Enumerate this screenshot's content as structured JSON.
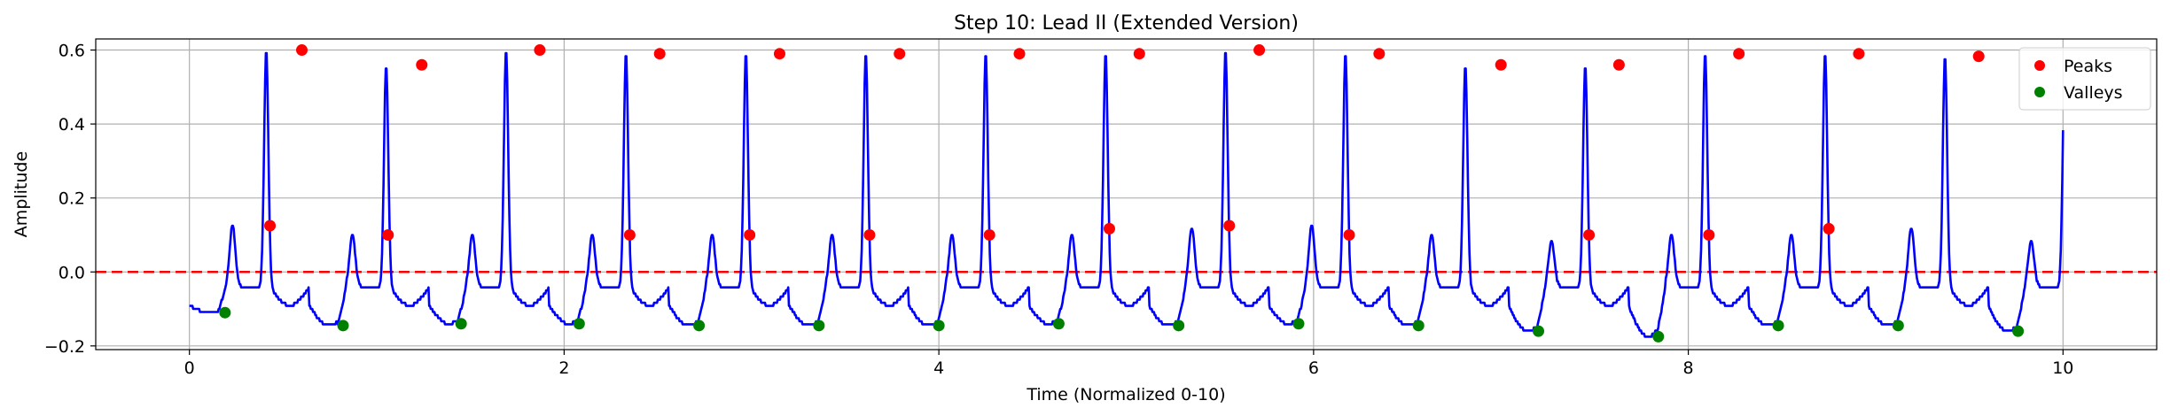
{
  "chart_data": {
    "type": "line",
    "title": "Step 10: Lead II (Extended Version)",
    "xlabel": "Time (Normalized 0-10)",
    "ylabel": "Amplitude",
    "xlim": [
      -0.5,
      10.5
    ],
    "ylim": [
      -0.21,
      0.63
    ],
    "xticks": [
      0,
      2,
      4,
      6,
      8,
      10
    ],
    "yticks": [
      -0.2,
      0.0,
      0.2,
      0.4,
      0.6
    ],
    "xtick_labels": [
      "0",
      "2",
      "4",
      "6",
      "8",
      "10"
    ],
    "ytick_labels": [
      "−0.2",
      "0.0",
      "0.2",
      "0.4",
      "0.6"
    ],
    "grid": true,
    "legend_position": "top-right",
    "reference_line": {
      "y": 0.0,
      "style": "dashed",
      "color": "#ff0000"
    },
    "beats": {
      "start": 0.0,
      "end": 10.0,
      "period": 0.64,
      "count": 16,
      "p_peaks": [
        0.125,
        0.1,
        0.1,
        0.1,
        0.1,
        0.1,
        0.1,
        0.1,
        0.117,
        0.125,
        0.1,
        0.083,
        0.1,
        0.1,
        0.117,
        0.083
      ],
      "r_peaks": [
        0.6,
        0.56,
        0.6,
        0.59,
        0.59,
        0.59,
        0.59,
        0.59,
        0.6,
        0.59,
        0.56,
        0.56,
        0.59,
        0.59,
        0.583,
        0.59
      ],
      "s_valleys": [
        -0.11,
        -0.145,
        -0.14,
        -0.14,
        -0.145,
        -0.145,
        -0.145,
        -0.14,
        -0.145,
        -0.14,
        -0.145,
        -0.16,
        -0.175,
        -0.145,
        -0.145,
        -0.16
      ],
      "baseline": -0.04
    },
    "series": [
      {
        "name": "Peaks",
        "kind": "scatter",
        "color": "#ff0000",
        "x": [
          0.43,
          0.6,
          1.06,
          1.24,
          1.87,
          2.35,
          2.51,
          2.99,
          3.15,
          3.63,
          3.79,
          4.27,
          4.43,
          4.91,
          5.07,
          5.55,
          5.71,
          6.19,
          6.35,
          7.0,
          7.47,
          7.63,
          8.11,
          8.27,
          8.75,
          8.91,
          9.55
        ],
        "y": [
          0.125,
          0.6,
          0.1,
          0.56,
          0.6,
          0.1,
          0.59,
          0.1,
          0.59,
          0.1,
          0.59,
          0.1,
          0.59,
          0.117,
          0.59,
          0.125,
          0.6,
          0.1,
          0.59,
          0.56,
          0.1,
          0.56,
          0.1,
          0.59,
          0.117,
          0.59,
          0.583
        ]
      },
      {
        "name": "Valleys",
        "kind": "scatter",
        "color": "#008000",
        "x": [
          0.19,
          0.82,
          1.45,
          2.08,
          2.72,
          3.36,
          4.0,
          4.64,
          5.28,
          5.92,
          6.56,
          7.2,
          7.84,
          8.48,
          9.12,
          9.76
        ],
        "y": [
          -0.11,
          -0.145,
          -0.14,
          -0.14,
          -0.145,
          -0.145,
          -0.145,
          -0.14,
          -0.145,
          -0.14,
          -0.145,
          -0.16,
          -0.175,
          -0.145,
          -0.145,
          -0.16
        ]
      }
    ],
    "signal_color": "#0000ff"
  }
}
